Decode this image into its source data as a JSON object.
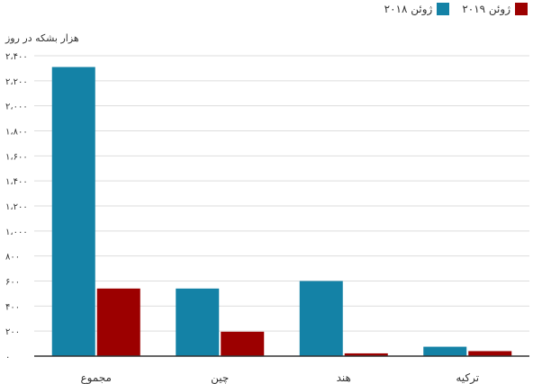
{
  "chart_data": {
    "type": "bar",
    "ylabel": "هزار بشکه در روز",
    "categories": [
      "مجموع",
      "چین",
      "هند",
      "ترکیه"
    ],
    "series": [
      {
        "name": "ژوئن ۲۰۱۸",
        "color": "#1482a6",
        "values": [
          2310,
          540,
          600,
          75
        ]
      },
      {
        "name": "ژوئن ۲۰۱۹",
        "color": "#9c0000",
        "values": [
          540,
          195,
          22,
          40
        ]
      }
    ],
    "ylim": [
      0,
      2400
    ],
    "yticks": [
      0,
      200,
      400,
      600,
      800,
      1000,
      1200,
      1400,
      1600,
      1800,
      2000,
      2200,
      2400
    ],
    "ytick_labels": [
      "۰",
      "۲۰۰",
      "۴۰۰",
      "۶۰۰",
      "۸۰۰",
      "۱،۰۰۰",
      "۱،۲۰۰",
      "۱،۴۰۰",
      "۱،۶۰۰",
      "۱،۸۰۰",
      "۲،۰۰۰",
      "۲،۲۰۰",
      "۲،۴۰۰"
    ],
    "grid": true,
    "legend_position": "top-right"
  }
}
